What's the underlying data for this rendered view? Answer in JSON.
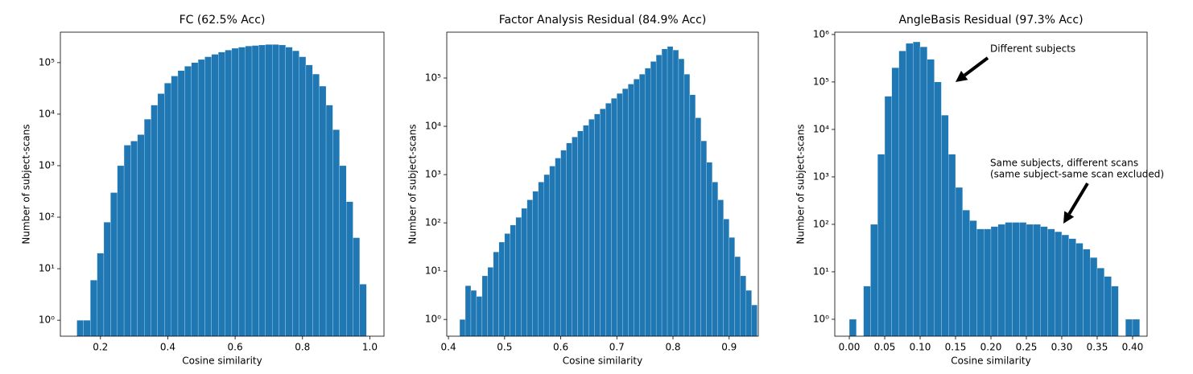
{
  "chart_data": [
    {
      "type": "histogram",
      "title": "FC (62.5% Acc)",
      "xlabel": "Cosine similarity",
      "ylabel": "Number of subject-scans",
      "color": "#1f77b4",
      "log_y": true,
      "bins": [
        0.13,
        0.15,
        0.17,
        0.19,
        0.21,
        0.23,
        0.25,
        0.27,
        0.29,
        0.31,
        0.33,
        0.35,
        0.37,
        0.39,
        0.41,
        0.43,
        0.45,
        0.47,
        0.49,
        0.51,
        0.53,
        0.55,
        0.57,
        0.59,
        0.61,
        0.63,
        0.65,
        0.67,
        0.69,
        0.71,
        0.73,
        0.75,
        0.77,
        0.79,
        0.81,
        0.83,
        0.85,
        0.87,
        0.89,
        0.91,
        0.93,
        0.95,
        0.97,
        0.99
      ],
      "counts": [
        1,
        1,
        6,
        20,
        80,
        300,
        1000,
        2500,
        3000,
        4000,
        8000,
        15000,
        25000,
        40000,
        55000,
        70000,
        85000,
        100000,
        115000,
        130000,
        145000,
        160000,
        175000,
        190000,
        200000,
        210000,
        215000,
        220000,
        225000,
        225000,
        220000,
        200000,
        170000,
        130000,
        90000,
        60000,
        35000,
        15000,
        5000,
        1000,
        200,
        40,
        5
      ],
      "xlim": [
        0.081,
        1.042
      ],
      "ylim": [
        0.49,
        390000
      ],
      "xticks": [
        0.2,
        0.4,
        0.6,
        0.8,
        {
          "value": 1,
          "label": "1.0"
        }
      ],
      "yticks": [
        {
          "value": 1,
          "label": "10⁰"
        },
        {
          "value": 10,
          "label": "10¹"
        },
        {
          "value": 100,
          "label": "10²"
        },
        {
          "value": 1000,
          "label": "10³"
        },
        {
          "value": 10000,
          "label": "10⁴"
        },
        {
          "value": 100000,
          "label": "10⁵"
        }
      ]
    },
    {
      "type": "histogram",
      "title": "Factor Analysis Residual (84.9% Acc)",
      "xlabel": "Cosine similarity",
      "ylabel": "Number of subject-scans",
      "color": "#1f77b4",
      "log_y": true,
      "bins": [
        0.42,
        0.43,
        0.44,
        0.45,
        0.46,
        0.47,
        0.48,
        0.49,
        0.5,
        0.51,
        0.52,
        0.53,
        0.54,
        0.55,
        0.56,
        0.57,
        0.58,
        0.59,
        0.6,
        0.61,
        0.62,
        0.63,
        0.64,
        0.65,
        0.66,
        0.67,
        0.68,
        0.69,
        0.7,
        0.71,
        0.72,
        0.73,
        0.74,
        0.75,
        0.76,
        0.77,
        0.78,
        0.79,
        0.8,
        0.81,
        0.82,
        0.83,
        0.84,
        0.85,
        0.86,
        0.87,
        0.88,
        0.89,
        0.9,
        0.91,
        0.92,
        0.93,
        0.94,
        0.95
      ],
      "counts": [
        1,
        5,
        4,
        3,
        8,
        12,
        25,
        40,
        60,
        90,
        130,
        200,
        300,
        450,
        700,
        1000,
        1500,
        2200,
        3200,
        4500,
        6000,
        8000,
        10500,
        14000,
        18000,
        23000,
        30000,
        38000,
        48000,
        60000,
        75000,
        95000,
        120000,
        160000,
        220000,
        300000,
        400000,
        450000,
        380000,
        250000,
        120000,
        45000,
        15000,
        5000,
        1800,
        700,
        300,
        120,
        50,
        20,
        8,
        4,
        2
      ],
      "xlim": [
        0.397,
        0.952
      ],
      "ylim": [
        0.45,
        890000
      ],
      "xticks": [
        0.4,
        0.5,
        0.6,
        0.7,
        0.8,
        0.9
      ],
      "yticks": [
        {
          "value": 1,
          "label": "10⁰"
        },
        {
          "value": 10,
          "label": "10¹"
        },
        {
          "value": 100,
          "label": "10²"
        },
        {
          "value": 1000,
          "label": "10³"
        },
        {
          "value": 10000,
          "label": "10⁴"
        },
        {
          "value": 100000,
          "label": "10⁵"
        }
      ]
    },
    {
      "type": "histogram",
      "title": "AngleBasis Residual (97.3% Acc)",
      "xlabel": "Cosine similarity",
      "ylabel": "Number of subject-scans",
      "color": "#1f77b4",
      "log_y": true,
      "bins": [
        0,
        0.01,
        0.02,
        0.03,
        0.04,
        0.05,
        0.06,
        0.07,
        0.08,
        0.09,
        0.1,
        0.11,
        0.12,
        0.13,
        0.14,
        0.15,
        0.16,
        0.17,
        0.18,
        0.19,
        0.2,
        0.21,
        0.22,
        0.23,
        0.24,
        0.25,
        0.26,
        0.27,
        0.28,
        0.29,
        0.3,
        0.31,
        0.32,
        0.33,
        0.34,
        0.35,
        0.36,
        0.37,
        0.38,
        0.39,
        0.4,
        0.41
      ],
      "counts": [
        1,
        0,
        5,
        100,
        3000,
        50000,
        200000,
        450000,
        650000,
        700000,
        550000,
        300000,
        100000,
        20000,
        3000,
        600,
        200,
        120,
        80,
        80,
        90,
        100,
        110,
        110,
        110,
        100,
        100,
        90,
        80,
        70,
        60,
        50,
        40,
        30,
        20,
        12,
        8,
        5,
        0,
        1,
        1
      ],
      "xlim": [
        -0.0205,
        0.4205
      ],
      "ylim": [
        0.44,
        1120000
      ],
      "xticks": [
        {
          "value": 0,
          "label": "0.00"
        },
        {
          "value": 0.05,
          "label": "0.05"
        },
        {
          "value": 0.1,
          "label": "0.10"
        },
        {
          "value": 0.15,
          "label": "0.15"
        },
        {
          "value": 0.2,
          "label": "0.20"
        },
        {
          "value": 0.25,
          "label": "0.25"
        },
        {
          "value": 0.3,
          "label": "0.30"
        },
        {
          "value": 0.35,
          "label": "0.35"
        },
        {
          "value": 0.4,
          "label": "0.40"
        }
      ],
      "yticks": [
        {
          "value": 1,
          "label": "10⁰"
        },
        {
          "value": 10,
          "label": "10¹"
        },
        {
          "value": 100,
          "label": "10²"
        },
        {
          "value": 1000,
          "label": "10³"
        },
        {
          "value": 10000,
          "label": "10⁴"
        },
        {
          "value": 100000,
          "label": "10⁵"
        },
        {
          "value": 1000000,
          "label": "10⁶"
        }
      ],
      "annotations": [
        {
          "lines": [
            "Different subjects"
          ]
        },
        {
          "lines": [
            "Same subjects, different scans",
            "(same subject-same scan excluded)"
          ]
        }
      ]
    }
  ]
}
